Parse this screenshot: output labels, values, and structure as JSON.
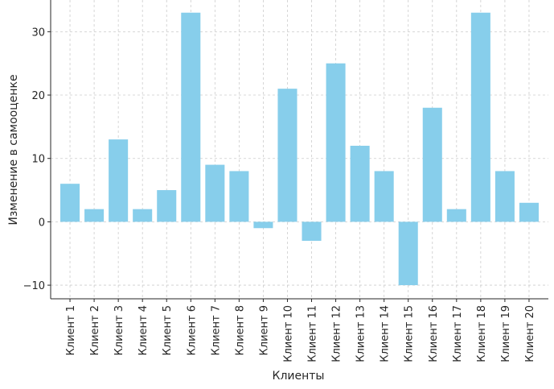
{
  "chart_data": {
    "type": "bar",
    "categories": [
      "Клиент 1",
      "Клиент 2",
      "Клиент 3",
      "Клиент 4",
      "Клиент 5",
      "Клиент 6",
      "Клиент 7",
      "Клиент 8",
      "Клиент 9",
      "Клиент 10",
      "Клиент 11",
      "Клиент 12",
      "Клиент 13",
      "Клиент 14",
      "Клиент 15",
      "Клиент 16",
      "Клиент 17",
      "Клиент 18",
      "Клиент 19",
      "Клиент 20"
    ],
    "values": [
      6,
      2,
      13,
      2,
      5,
      33,
      9,
      8,
      -1,
      21,
      -3,
      25,
      12,
      8,
      -10,
      18,
      2,
      33,
      8,
      3
    ],
    "xlabel": "Клиенты",
    "ylabel": "Изменение в самооценке",
    "ylim": [
      -12.15,
      35
    ],
    "yticks": [
      -10,
      0,
      10,
      20,
      30
    ],
    "ytick_labels": [
      "−10",
      "0",
      "10",
      "20",
      "30"
    ],
    "grid": true,
    "bar_color": "#87ceeb"
  }
}
